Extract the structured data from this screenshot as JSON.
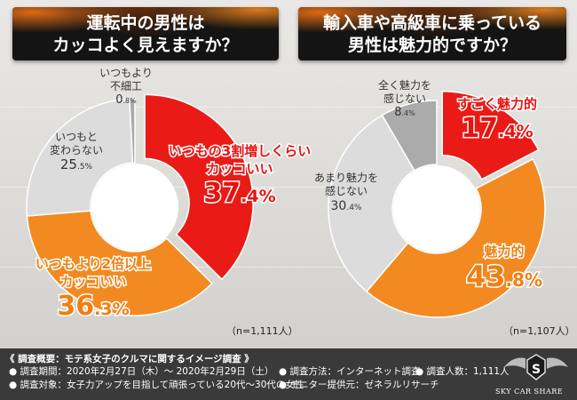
{
  "colors": {
    "red": "#ea1b17",
    "orange": "#f28a21",
    "light_gray": "#dcdcdc",
    "gray": "#ababab",
    "title_bg": "#141414",
    "footer_bg": "#3a3a3a"
  },
  "left": {
    "title_line1": "運転中の男性は",
    "title_line2": "カッコよく見えますか？",
    "n_label": "（n=1,111人）"
  },
  "right": {
    "title_line1": "輸入車や高級車に乗っている",
    "title_line2": "男性は魅力的ですか？",
    "n_label": "（n=1,107人）"
  },
  "chart_data": [
    {
      "type": "pie",
      "title": "運転中の男性はカッコよく見えますか？",
      "categories": [
        "いつもの3割増しくらいカッコいい",
        "いつもより2倍以上カッコいい",
        "いつもと変わらない",
        "いつもより不細工"
      ],
      "values": [
        37.4,
        36.3,
        25.5,
        0.8
      ],
      "colors": [
        "#ea1b17",
        "#f28a21",
        "#dcdcdc",
        "#ababab"
      ],
      "label_lines": [
        [
          "いつもの3割増しくらい",
          "カッコいい"
        ],
        [
          "いつもより2倍以上",
          "カッコいい"
        ],
        [
          "いつもと",
          "変わらない"
        ],
        [
          "いつもより",
          "不細工"
        ]
      ],
      "value_labels": [
        [
          "37",
          ".4",
          "%"
        ],
        [
          "36",
          ".3",
          "%"
        ],
        [
          "25",
          ".5",
          "%"
        ],
        [
          "0",
          ".8",
          "%"
        ]
      ]
    },
    {
      "type": "pie",
      "title": "輸入車や高級車に乗っている男性は魅力的ですか？",
      "categories": [
        "すごく魅力的",
        "魅力的",
        "あまり魅力を感じない",
        "全く魅力を感じない"
      ],
      "values": [
        17.4,
        43.8,
        30.4,
        8.4
      ],
      "colors": [
        "#ea1b17",
        "#f28a21",
        "#dcdcdc",
        "#ababab"
      ],
      "label_lines": [
        [
          "すごく魅力的"
        ],
        [
          "魅力的"
        ],
        [
          "あまり魅力を",
          "感じない"
        ],
        [
          "全く魅力を",
          "感じない"
        ]
      ],
      "value_labels": [
        [
          "17",
          ".4",
          "%"
        ],
        [
          "43",
          ".8",
          "%"
        ],
        [
          "30",
          ".4",
          "%"
        ],
        [
          "8",
          ".4",
          "%"
        ]
      ]
    }
  ],
  "footer": {
    "overview": "《 調査概要：モテ系女子のクルマに関するイメージ調査 》",
    "period": "● 調査期間：2020年2月27日（木）～ 2020年2月29日（土）",
    "method": "● 調査方法：インターネット調査",
    "respondents": "● 調査人数：1,111人",
    "target": "● 調査対象：女子力アップを目指して頑張っている20代～30代の女性",
    "provider": "● モニター提供元：ゼネラルリサーチ",
    "logo_text": "SKY CAR SHARE",
    "logo_letter": "S"
  }
}
